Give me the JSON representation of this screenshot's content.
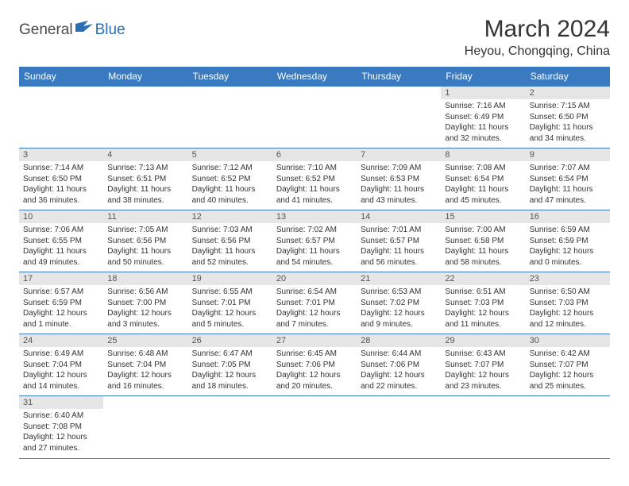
{
  "logo": {
    "part1": "General",
    "part2": "Blue"
  },
  "title": "March 2024",
  "location": "Heyou, Chongqing, China",
  "colors": {
    "header_bg": "#3a7ac0",
    "header_text": "#ffffff",
    "daynum_bg": "#e6e6e6",
    "rule": "#3a7ac0",
    "logo_blue": "#2d6db3",
    "logo_gray": "#4a4a4a",
    "body_text": "#333333"
  },
  "weekdays": [
    "Sunday",
    "Monday",
    "Tuesday",
    "Wednesday",
    "Thursday",
    "Friday",
    "Saturday"
  ],
  "first_weekday_index": 5,
  "days": [
    {
      "n": 1,
      "sunrise": "7:16 AM",
      "sunset": "6:49 PM",
      "daylight": "11 hours and 32 minutes."
    },
    {
      "n": 2,
      "sunrise": "7:15 AM",
      "sunset": "6:50 PM",
      "daylight": "11 hours and 34 minutes."
    },
    {
      "n": 3,
      "sunrise": "7:14 AM",
      "sunset": "6:50 PM",
      "daylight": "11 hours and 36 minutes."
    },
    {
      "n": 4,
      "sunrise": "7:13 AM",
      "sunset": "6:51 PM",
      "daylight": "11 hours and 38 minutes."
    },
    {
      "n": 5,
      "sunrise": "7:12 AM",
      "sunset": "6:52 PM",
      "daylight": "11 hours and 40 minutes."
    },
    {
      "n": 6,
      "sunrise": "7:10 AM",
      "sunset": "6:52 PM",
      "daylight": "11 hours and 41 minutes."
    },
    {
      "n": 7,
      "sunrise": "7:09 AM",
      "sunset": "6:53 PM",
      "daylight": "11 hours and 43 minutes."
    },
    {
      "n": 8,
      "sunrise": "7:08 AM",
      "sunset": "6:54 PM",
      "daylight": "11 hours and 45 minutes."
    },
    {
      "n": 9,
      "sunrise": "7:07 AM",
      "sunset": "6:54 PM",
      "daylight": "11 hours and 47 minutes."
    },
    {
      "n": 10,
      "sunrise": "7:06 AM",
      "sunset": "6:55 PM",
      "daylight": "11 hours and 49 minutes."
    },
    {
      "n": 11,
      "sunrise": "7:05 AM",
      "sunset": "6:56 PM",
      "daylight": "11 hours and 50 minutes."
    },
    {
      "n": 12,
      "sunrise": "7:03 AM",
      "sunset": "6:56 PM",
      "daylight": "11 hours and 52 minutes."
    },
    {
      "n": 13,
      "sunrise": "7:02 AM",
      "sunset": "6:57 PM",
      "daylight": "11 hours and 54 minutes."
    },
    {
      "n": 14,
      "sunrise": "7:01 AM",
      "sunset": "6:57 PM",
      "daylight": "11 hours and 56 minutes."
    },
    {
      "n": 15,
      "sunrise": "7:00 AM",
      "sunset": "6:58 PM",
      "daylight": "11 hours and 58 minutes."
    },
    {
      "n": 16,
      "sunrise": "6:59 AM",
      "sunset": "6:59 PM",
      "daylight": "12 hours and 0 minutes."
    },
    {
      "n": 17,
      "sunrise": "6:57 AM",
      "sunset": "6:59 PM",
      "daylight": "12 hours and 1 minute."
    },
    {
      "n": 18,
      "sunrise": "6:56 AM",
      "sunset": "7:00 PM",
      "daylight": "12 hours and 3 minutes."
    },
    {
      "n": 19,
      "sunrise": "6:55 AM",
      "sunset": "7:01 PM",
      "daylight": "12 hours and 5 minutes."
    },
    {
      "n": 20,
      "sunrise": "6:54 AM",
      "sunset": "7:01 PM",
      "daylight": "12 hours and 7 minutes."
    },
    {
      "n": 21,
      "sunrise": "6:53 AM",
      "sunset": "7:02 PM",
      "daylight": "12 hours and 9 minutes."
    },
    {
      "n": 22,
      "sunrise": "6:51 AM",
      "sunset": "7:03 PM",
      "daylight": "12 hours and 11 minutes."
    },
    {
      "n": 23,
      "sunrise": "6:50 AM",
      "sunset": "7:03 PM",
      "daylight": "12 hours and 12 minutes."
    },
    {
      "n": 24,
      "sunrise": "6:49 AM",
      "sunset": "7:04 PM",
      "daylight": "12 hours and 14 minutes."
    },
    {
      "n": 25,
      "sunrise": "6:48 AM",
      "sunset": "7:04 PM",
      "daylight": "12 hours and 16 minutes."
    },
    {
      "n": 26,
      "sunrise": "6:47 AM",
      "sunset": "7:05 PM",
      "daylight": "12 hours and 18 minutes."
    },
    {
      "n": 27,
      "sunrise": "6:45 AM",
      "sunset": "7:06 PM",
      "daylight": "12 hours and 20 minutes."
    },
    {
      "n": 28,
      "sunrise": "6:44 AM",
      "sunset": "7:06 PM",
      "daylight": "12 hours and 22 minutes."
    },
    {
      "n": 29,
      "sunrise": "6:43 AM",
      "sunset": "7:07 PM",
      "daylight": "12 hours and 23 minutes."
    },
    {
      "n": 30,
      "sunrise": "6:42 AM",
      "sunset": "7:07 PM",
      "daylight": "12 hours and 25 minutes."
    },
    {
      "n": 31,
      "sunrise": "6:40 AM",
      "sunset": "7:08 PM",
      "daylight": "12 hours and 27 minutes."
    }
  ],
  "labels": {
    "sunrise": "Sunrise:",
    "sunset": "Sunset:",
    "daylight": "Daylight:"
  }
}
